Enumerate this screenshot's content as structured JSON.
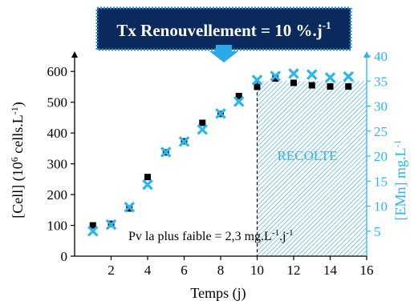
{
  "banner": {
    "text": "Tx Renouvellement = 10 %.j",
    "superscript": "-1"
  },
  "annotation": {
    "text_before": "Pv la plus faible = 2,3 mg.L",
    "sup1": "-1",
    "mid": ".j",
    "sup2": "-1"
  },
  "harvest_label": "RECOLTE",
  "colors": {
    "banner_fill": "#0a2a5e",
    "banner_border": "#1e90e0",
    "banner_text": "#ffffff",
    "arrow": "#2aa8e8",
    "cell_marker": "#000000",
    "emn_marker": "#29b6f0",
    "right_axis": "#29b6f0",
    "harvest_hatch": "#29a3e0",
    "harvest_text": "#29b6f0"
  },
  "chart_data": {
    "type": "scatter",
    "xlabel": "Temps (j)",
    "x_ticks": [
      2,
      4,
      6,
      8,
      10,
      12,
      14,
      16
    ],
    "xlim": [
      0,
      16
    ],
    "y_left": {
      "label_main": "[Cell] (10",
      "label_sup1": "6",
      "label_mid": " cells.L",
      "label_sup2": "-1",
      "label_end": ")",
      "ticks": [
        0,
        100,
        200,
        300,
        400,
        500,
        600
      ],
      "ylim": [
        0,
        650
      ]
    },
    "y_right": {
      "label_main": "[EMn] mg.L",
      "label_sup": "-1",
      "ticks": [
        5,
        10,
        15,
        20,
        25,
        30,
        35,
        40
      ],
      "ylim": [
        0,
        40
      ]
    },
    "harvest_region": {
      "x_start": 10,
      "x_end": 16,
      "y_right_top": 35
    },
    "series": [
      {
        "axis": "left",
        "marker": "square",
        "x": [
          1,
          2,
          3,
          4,
          5,
          6,
          7,
          8,
          9,
          10,
          11,
          12,
          13,
          14,
          15
        ],
        "values": [
          100,
          105,
          155,
          257,
          337,
          373,
          433,
          462,
          520,
          550,
          577,
          563,
          555,
          551,
          551
        ]
      },
      {
        "axis": "right",
        "marker": "x",
        "x": [
          1,
          2,
          3,
          4,
          5,
          6,
          7,
          8,
          9,
          10,
          11,
          12,
          13,
          14,
          15
        ],
        "values": [
          5,
          6.3,
          9.8,
          14.3,
          20.8,
          22.9,
          25.3,
          28.5,
          30.9,
          35.2,
          36.0,
          36.5,
          36.3,
          35.7,
          35.9
        ]
      }
    ]
  }
}
